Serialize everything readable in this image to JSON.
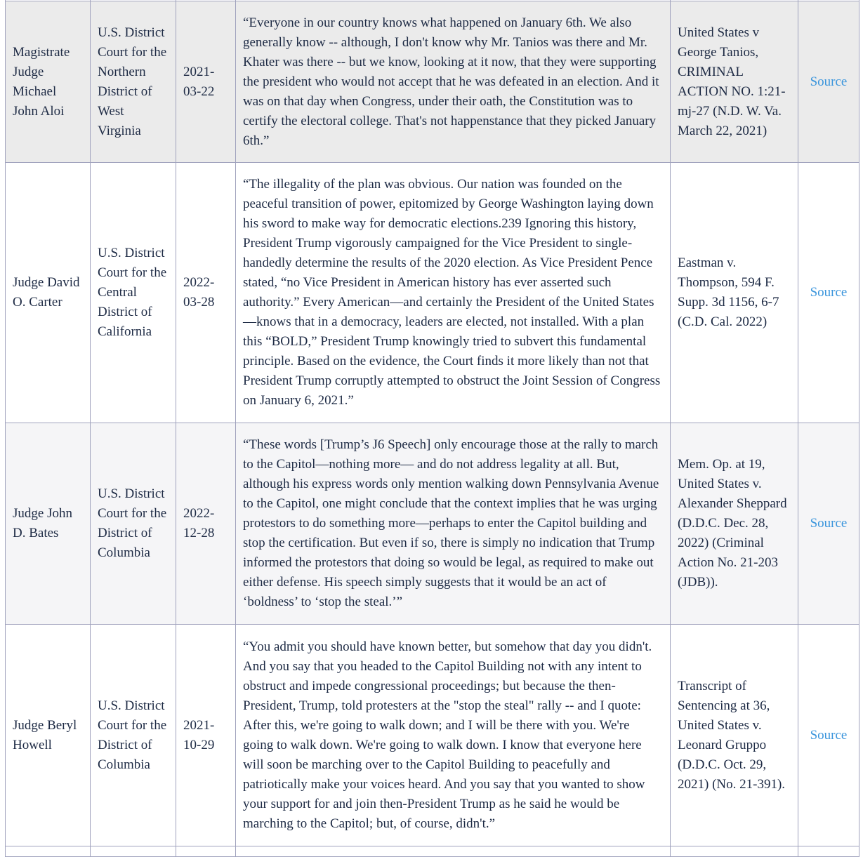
{
  "rows": [
    {
      "judge": "Magistrate Judge Michael John Aloi",
      "court": "U.S. District Court for the Northern District of West Virginia",
      "date": "2021-03-22",
      "quote": "“Everyone in our country knows what happened on January 6th. We also generally know -- although, I don't know why Mr. Tanios was there and Mr. Khater was there -- but we know, looking at it now, that they were supporting the president who would not accept that he was defeated in an election. And it was on that day when Congress, under their oath, the Constitution was to certify the electoral college. That's not happenstance that they picked January 6th.”",
      "citation": "United States v George Tanios, CRIMINAL ACTION NO. 1:21-mj-27 (N.D. W. Va. March 22, 2021)",
      "link": "Source"
    },
    {
      "judge": "Judge David O. Carter",
      "court": "U.S. District Court for the Central District of California",
      "date": "2022-03-28",
      "quote": "“The illegality of the plan was obvious. Our nation was founded on the peaceful transition of power, epitomized by George Washington laying down his sword to make way for democratic elections.239 Ignoring this history, President Trump vigorously campaigned for the Vice President to single-handedly determine the results of the 2020 election. As Vice President Pence stated, “no Vice President in American history has ever asserted such authority.” Every American—and certainly the President of the United States—knows that in a democracy, leaders are elected, not installed. With a plan this “BOLD,” President Trump knowingly tried to subvert this fundamental principle. Based on the evidence, the Court finds it more likely than not that President Trump corruptly attempted to obstruct the Joint Session of Congress on January 6, 2021.”",
      "citation": "Eastman v. Thompson, 594 F. Supp. 3d 1156, 6-7 (C.D. Cal. 2022)",
      "link": "Source"
    },
    {
      "judge": "Judge John D. Bates",
      "court": "U.S. District Court for the District of Columbia",
      "date": "2022-12-28",
      "quote": "“These words [Trump’s J6 Speech] only encourage those at the rally to march to the Capitol—nothing more— and do not address legality at all. But, although his express words only mention walking down Pennsylvania Avenue to the Capitol, one might conclude that the context implies that he was urging protestors to do something more—perhaps to enter the Capitol building and stop the certification. But even if so, there is simply no indication that Trump informed the protestors that doing so would be legal, as required to make out either defense. His speech simply suggests that it would be an act of ‘boldness’ to ‘stop the steal.’”",
      "citation": "Mem. Op. at 19, United States v. Alexander Sheppard (D.D.C. Dec. 28, 2022) (Criminal Action No. 21-203 (JDB)).",
      "link": "Source"
    },
    {
      "judge": "Judge Beryl Howell",
      "court": "U.S. District Court for the District of Columbia",
      "date": "2021-10-29",
      "quote": "“You admit you should have known better, but somehow that day you didn't. And you say that you headed to the Capitol Building not with any intent to obstruct and impede congressional proceedings; but because the then-President, Trump, told protesters at the \"stop the steal\" rally -- and I quote: After this, we're going to walk down; and I will be there with you. We're going to walk down. We're going to walk down. I know that everyone here will soon be marching over to the Capitol Building to peacefully and patriotically make your voices heard. And you say that you wanted to show your support for and join then-President Trump as he said he would be marching to the Capitol; but, of course, didn't.”",
      "citation": "Transcript of Sentencing at 36, United States v. Leonard Gruppo (D.D.C. Oct. 29, 2021) (No. 21-391).",
      "link": "Source"
    }
  ]
}
